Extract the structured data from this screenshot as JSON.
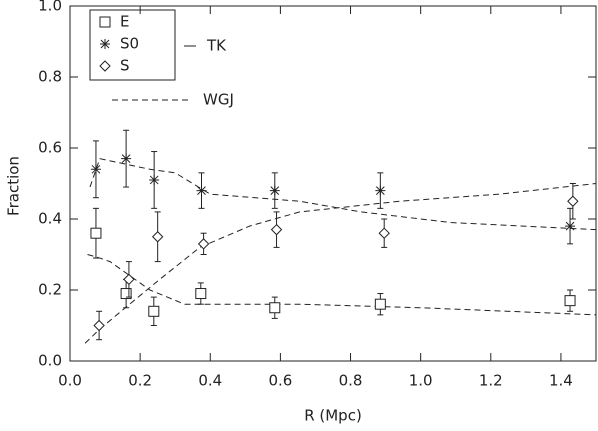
{
  "chart_data": {
    "type": "scatter",
    "x_label": "R (Mpc)",
    "y_label": "Fraction",
    "xlim": [
      0,
      1.5
    ],
    "ylim": [
      0,
      1
    ],
    "xticks": [
      {
        "value": 0,
        "label": "0.0"
      },
      {
        "value": 0.2,
        "label": "0.2"
      },
      {
        "value": 0.4,
        "label": "0.4"
      },
      {
        "value": 0.6,
        "label": "0.6"
      },
      {
        "value": 0.8,
        "label": "0.8"
      },
      {
        "value": 1,
        "label": "1.0"
      },
      {
        "value": 1.2,
        "label": "1.2"
      },
      {
        "value": 1.4,
        "label": "1.4"
      }
    ],
    "yticks": [
      {
        "value": 0,
        "label": "0.0"
      },
      {
        "value": 0.2,
        "label": "0.2"
      },
      {
        "value": 0.4,
        "label": "0.4"
      },
      {
        "value": 0.6,
        "label": "0.6"
      },
      {
        "value": 0.8,
        "label": "0.8"
      },
      {
        "value": 1,
        "label": "1.0"
      }
    ],
    "data_label": "TK",
    "model_label": "WGJ",
    "color": "#222",
    "series": [
      {
        "name": "E",
        "marker": "square",
        "x": [
          0.074,
          0.16,
          0.239,
          0.373,
          0.584,
          0.885,
          1.426
        ],
        "values": [
          0.36,
          0.19,
          0.14,
          0.19,
          0.15,
          0.16,
          0.17
        ],
        "errors": [
          0.07,
          0.04,
          0.04,
          0.03,
          0.03,
          0.03,
          0.03
        ]
      },
      {
        "name": "S0",
        "marker": "asterisk",
        "x": [
          0.074,
          0.16,
          0.24,
          0.375,
          0.584,
          0.885,
          1.426
        ],
        "values": [
          0.54,
          0.57,
          0.51,
          0.48,
          0.48,
          0.48,
          0.38
        ],
        "errors": [
          0.08,
          0.08,
          0.08,
          0.05,
          0.05,
          0.05,
          0.05
        ]
      },
      {
        "name": "S",
        "marker": "diamond",
        "x": [
          0.083,
          0.168,
          0.25,
          0.381,
          0.589,
          0.896,
          1.434
        ],
        "values": [
          0.1,
          0.23,
          0.35,
          0.33,
          0.37,
          0.36,
          0.45
        ],
        "errors": [
          0.04,
          0.05,
          0.07,
          0.03,
          0.05,
          0.04,
          0.05
        ]
      }
    ],
    "model_lines": [
      {
        "x": [
          0.05,
          0.085,
          0.114,
          0.228,
          0.327,
          0.655,
          1.0,
          1.5
        ],
        "y": [
          0.3,
          0.29,
          0.28,
          0.2,
          0.16,
          0.16,
          0.15,
          0.13
        ]
      },
      {
        "x": [
          0.057,
          0.085,
          0.228,
          0.3,
          0.4,
          0.655,
          0.83,
          1.086,
          1.5
        ],
        "y": [
          0.49,
          0.57,
          0.54,
          0.53,
          0.47,
          0.45,
          0.42,
          0.39,
          0.37
        ]
      },
      {
        "x": [
          0.043,
          0.085,
          0.17,
          0.256,
          0.37,
          0.512,
          0.655,
          0.94,
          1.224,
          1.5
        ],
        "y": [
          0.05,
          0.09,
          0.16,
          0.23,
          0.32,
          0.38,
          0.42,
          0.45,
          0.47,
          0.5
        ]
      }
    ]
  }
}
